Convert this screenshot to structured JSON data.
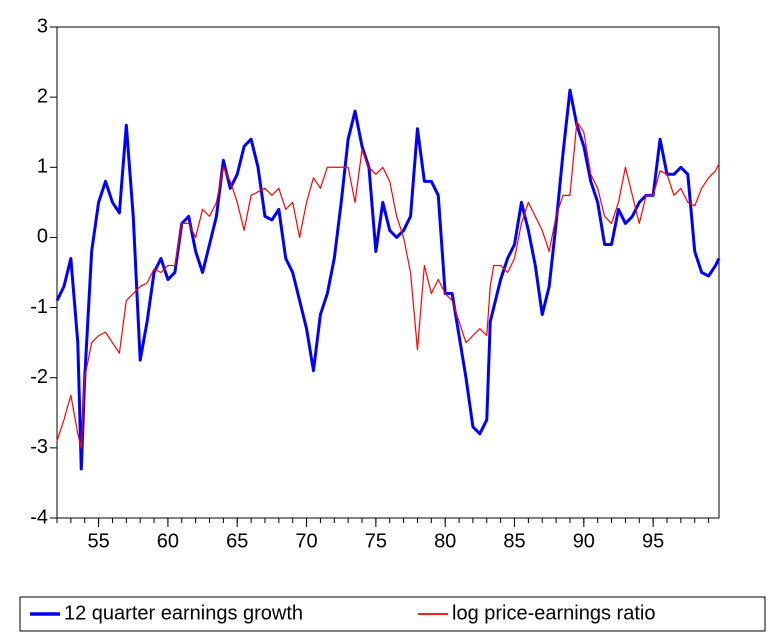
{
  "chart_data": {
    "type": "line",
    "x": [
      1952,
      1952.5,
      1953,
      1953.5,
      1953.75,
      1954,
      1954.5,
      1955,
      1955.5,
      1956,
      1956.5,
      1957,
      1957.5,
      1958,
      1958.5,
      1959,
      1959.5,
      1960,
      1960.5,
      1961,
      1961.5,
      1962,
      1962.5,
      1963,
      1963.5,
      1964,
      1964.5,
      1965,
      1965.5,
      1966,
      1966.5,
      1967,
      1967.5,
      1968,
      1968.5,
      1969,
      1969.5,
      1970,
      1970.5,
      1971,
      1971.5,
      1972,
      1972.5,
      1973,
      1973.5,
      1974,
      1974.5,
      1975,
      1975.5,
      1976,
      1976.5,
      1977,
      1977.5,
      1978,
      1978.5,
      1979,
      1979.5,
      1980,
      1980.5,
      1981,
      1981.5,
      1982,
      1982.5,
      1983,
      1983.25,
      1983.5,
      1984,
      1984.5,
      1985,
      1985.5,
      1986,
      1986.5,
      1987,
      1987.5,
      1988,
      1988.5,
      1989,
      1989.5,
      1990,
      1990.5,
      1991,
      1991.5,
      1992,
      1992.5,
      1993,
      1993.5,
      1994,
      1994.5,
      1995,
      1995.5,
      1996,
      1996.5,
      1997,
      1997.5,
      1998,
      1998.5,
      1999,
      1999.5,
      1999.75
    ],
    "series": [
      {
        "name": "12 quarter earnings growth",
        "color": "#0000ff",
        "width": 3,
        "values": [
          -0.9,
          -0.7,
          -0.3,
          -1.5,
          -3.3,
          -2.0,
          -0.2,
          0.5,
          0.8,
          0.5,
          0.35,
          1.6,
          0.3,
          -1.75,
          -1.2,
          -0.5,
          -0.3,
          -0.6,
          -0.5,
          0.2,
          0.3,
          -0.2,
          -0.5,
          -0.1,
          0.3,
          1.1,
          0.7,
          0.9,
          1.3,
          1.4,
          1.0,
          0.3,
          0.25,
          0.4,
          -0.3,
          -0.5,
          -0.9,
          -1.3,
          -1.9,
          -1.1,
          -0.8,
          -0.3,
          0.5,
          1.4,
          1.8,
          1.3,
          1.0,
          -0.2,
          0.5,
          0.1,
          0.0,
          0.1,
          0.3,
          1.55,
          0.8,
          0.8,
          0.6,
          -0.8,
          -0.8,
          -1.4,
          -2.0,
          -2.7,
          -2.8,
          -2.6,
          -1.2,
          -1.0,
          -0.6,
          -0.3,
          -0.1,
          0.5,
          0.1,
          -0.4,
          -1.1,
          -0.7,
          0.2,
          1.2,
          2.1,
          1.6,
          1.3,
          0.8,
          0.5,
          -0.1,
          -0.1,
          0.4,
          0.2,
          0.3,
          0.5,
          0.6,
          0.6,
          1.4,
          0.9,
          0.9,
          1.0,
          0.9,
          -0.2,
          -0.5,
          -0.55,
          -0.4,
          -0.3
        ]
      },
      {
        "name": "log price-earnings ratio",
        "color": "#ff0000",
        "width": 1.2,
        "values": [
          -2.9,
          -2.6,
          -2.25,
          -2.8,
          -3.0,
          -2.0,
          -1.5,
          -1.4,
          -1.35,
          -1.5,
          -1.65,
          -0.9,
          -0.8,
          -0.7,
          -0.65,
          -0.45,
          -0.5,
          -0.4,
          -0.4,
          0.2,
          0.2,
          0.0,
          0.4,
          0.3,
          0.5,
          1.0,
          0.8,
          0.5,
          0.1,
          0.6,
          0.65,
          0.7,
          0.6,
          0.7,
          0.4,
          0.5,
          0.0,
          0.5,
          0.85,
          0.7,
          1.0,
          1.0,
          1.0,
          1.0,
          0.5,
          1.25,
          1.0,
          0.9,
          1.0,
          0.8,
          0.3,
          0.0,
          -0.5,
          -1.6,
          -0.4,
          -0.8,
          -0.6,
          -0.8,
          -0.9,
          -1.2,
          -1.5,
          -1.4,
          -1.3,
          -1.4,
          -0.7,
          -0.4,
          -0.4,
          -0.5,
          -0.3,
          0.2,
          0.5,
          0.3,
          0.1,
          -0.2,
          0.3,
          0.6,
          0.6,
          1.65,
          1.5,
          0.9,
          0.7,
          0.3,
          0.2,
          0.5,
          1.0,
          0.6,
          0.2,
          0.6,
          0.6,
          0.95,
          0.9,
          0.6,
          0.7,
          0.5,
          0.45,
          0.7,
          0.85,
          0.95,
          1.05
        ]
      }
    ],
    "xlim": [
      1952,
      1999.75
    ],
    "xticks": [
      {
        "value": 1955,
        "label": "55"
      },
      {
        "value": 1960,
        "label": "60"
      },
      {
        "value": 1965,
        "label": "65"
      },
      {
        "value": 1970,
        "label": "70"
      },
      {
        "value": 1975,
        "label": "75"
      },
      {
        "value": 1980,
        "label": "80"
      },
      {
        "value": 1985,
        "label": "85"
      },
      {
        "value": 1990,
        "label": "90"
      },
      {
        "value": 1995,
        "label": "95"
      }
    ],
    "ylim": [
      -4,
      3
    ],
    "yticks": [
      -4,
      -3,
      -2,
      -1,
      0,
      1,
      2,
      3
    ]
  }
}
